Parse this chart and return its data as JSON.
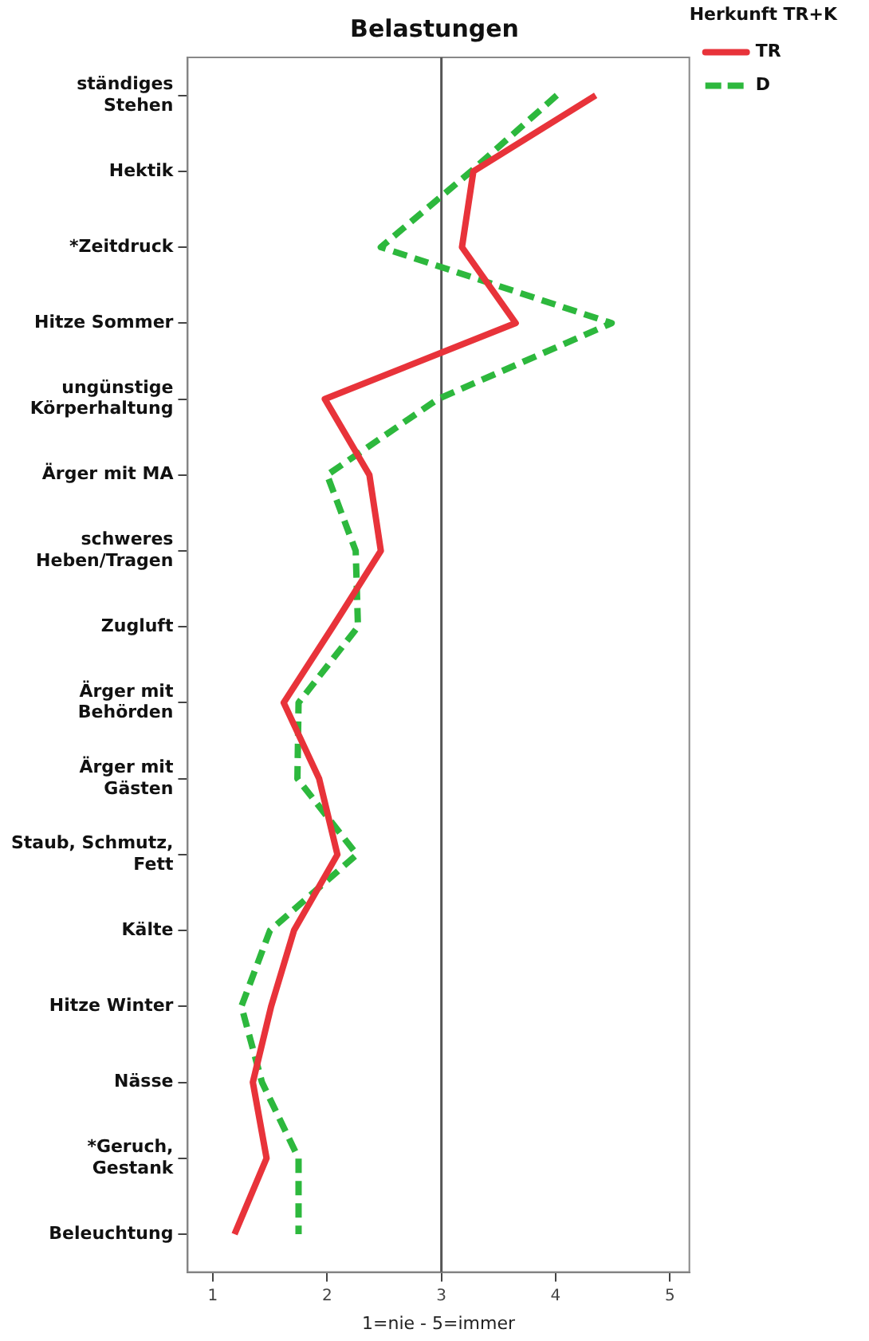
{
  "chart_data": {
    "type": "line",
    "orientation": "horizontal",
    "title": "Belastungen",
    "xlabel": "1=nie - 5=immer",
    "legend_title": "Herkunft TR+K",
    "legend": "top right",
    "grid": false,
    "marker": "none",
    "categories": [
      "ständiges\nStehen",
      "Hektik",
      "*Zeitdruck",
      "Hitze Sommer",
      "ungünstige\nKörperhaltung",
      "Ärger mit MA",
      "schweres\nHeben/Tragen",
      "Zugluft",
      "Ärger mit\nBehörden",
      "Ärger mit\nGästen",
      "Staub, Schmutz,\nFett",
      "Kälte",
      "Hitze Winter",
      "Nässe",
      "*Geruch,\nGestank",
      "Beleuchtung"
    ],
    "xlim": [
      0.78,
      5.17
    ],
    "xticks": [
      1,
      2,
      3,
      4,
      5
    ],
    "ref_lines": [
      {
        "axis": "x",
        "value": 3,
        "color": "#555555"
      }
    ],
    "series": [
      {
        "name": "TR",
        "color": "#e8333a",
        "line_style": "solid",
        "values": [
          4.35,
          3.28,
          3.18,
          3.65,
          1.98,
          2.37,
          2.47,
          2.05,
          1.62,
          1.93,
          2.09,
          1.71,
          1.51,
          1.35,
          1.47,
          1.19
        ]
      },
      {
        "name": "D",
        "color": "#2db83d",
        "line_style": "dashed",
        "values": [
          4.01,
          3.26,
          2.47,
          4.49,
          2.97,
          2.0,
          2.25,
          2.27,
          1.75,
          1.74,
          2.26,
          1.5,
          1.25,
          1.43,
          1.75,
          1.75
        ]
      }
    ]
  }
}
